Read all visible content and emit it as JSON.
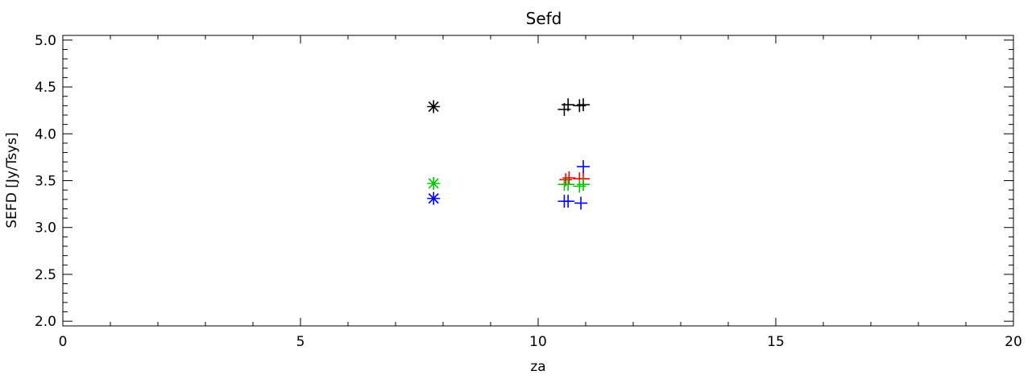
{
  "chart_data": {
    "type": "scatter",
    "title": "Sefd",
    "xlabel": "za",
    "ylabel": "SEFD [Jy/Tsys]",
    "xlim": [
      0,
      20
    ],
    "ylim": [
      1.95,
      5.05
    ],
    "x_ticks": [
      0,
      5,
      10,
      15,
      20
    ],
    "x_tick_labels": [
      "0",
      "5",
      "10",
      "15",
      "20"
    ],
    "y_ticks": [
      2.0,
      2.5,
      3.0,
      3.5,
      4.0,
      4.5,
      5.0
    ],
    "y_tick_labels": [
      "2.0",
      "2.5",
      "3.0",
      "3.5",
      "4.0",
      "4.5",
      "5.0"
    ],
    "grid": false,
    "legend": "none",
    "series": [
      {
        "color": "#000000",
        "points": [
          {
            "x": 7.8,
            "y": 4.29,
            "marker": "asterisk"
          },
          {
            "x": 10.55,
            "y": 4.26,
            "marker": "plus"
          },
          {
            "x": 10.63,
            "y": 4.31,
            "marker": "plus"
          },
          {
            "x": 10.87,
            "y": 4.3,
            "marker": "plus"
          },
          {
            "x": 10.95,
            "y": 4.31,
            "marker": "plus"
          }
        ]
      },
      {
        "color": "#ff0000",
        "points": [
          {
            "x": 10.58,
            "y": 3.51,
            "marker": "plus"
          },
          {
            "x": 10.65,
            "y": 3.53,
            "marker": "plus"
          },
          {
            "x": 10.87,
            "y": 3.52,
            "marker": "plus"
          },
          {
            "x": 10.95,
            "y": 3.52,
            "marker": "plus"
          }
        ]
      },
      {
        "color": "#00c800",
        "points": [
          {
            "x": 7.8,
            "y": 3.47,
            "marker": "asterisk"
          },
          {
            "x": 10.55,
            "y": 3.46,
            "marker": "plus"
          },
          {
            "x": 10.63,
            "y": 3.46,
            "marker": "plus"
          },
          {
            "x": 10.87,
            "y": 3.44,
            "marker": "plus"
          },
          {
            "x": 10.95,
            "y": 3.46,
            "marker": "plus"
          }
        ]
      },
      {
        "color": "#0000ff",
        "points": [
          {
            "x": 7.8,
            "y": 3.31,
            "marker": "asterisk"
          },
          {
            "x": 10.55,
            "y": 3.28,
            "marker": "plus"
          },
          {
            "x": 10.63,
            "y": 3.28,
            "marker": "plus"
          },
          {
            "x": 10.9,
            "y": 3.26,
            "marker": "plus"
          },
          {
            "x": 10.95,
            "y": 3.65,
            "marker": "plus"
          }
        ]
      }
    ]
  }
}
